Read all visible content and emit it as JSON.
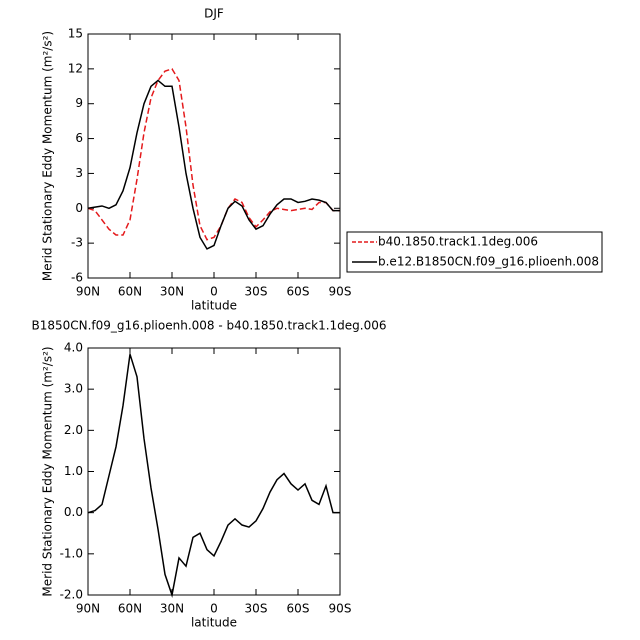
{
  "chart_data": [
    {
      "type": "line",
      "title": "DJF",
      "xlabel": "latitude",
      "ylabel": "Merid Stationary Eddy Momentum (m²/s²)",
      "x": [
        90,
        85,
        80,
        75,
        70,
        65,
        60,
        55,
        50,
        45,
        40,
        35,
        30,
        25,
        20,
        15,
        10,
        5,
        0,
        -5,
        -10,
        -15,
        -20,
        -25,
        -30,
        -35,
        -40,
        -45,
        -50,
        -55,
        -60,
        -65,
        -70,
        -75,
        -80,
        -85,
        -90
      ],
      "series": [
        {
          "name": "b40.1850.track1.1deg.006",
          "color": "#e41a1c",
          "dash": true,
          "values": [
            0,
            -0.2,
            -1,
            -1.8,
            -2.3,
            -2.3,
            -1,
            2.5,
            6.5,
            9.5,
            11,
            11.8,
            12,
            11,
            7,
            2,
            -1.5,
            -2.7,
            -2.5,
            -1.5,
            0,
            0.8,
            0.5,
            -0.8,
            -1.6,
            -1,
            -0.3,
            0,
            -0.1,
            -0.2,
            -0.1,
            0,
            -0.1,
            0.5,
            0.5,
            -0.2,
            -0.2
          ]
        },
        {
          "name": "b.e12.B1850CN.f09_g16.plioenh.008",
          "color": "#000000",
          "dash": false,
          "values": [
            0,
            0.1,
            0.2,
            0,
            0.3,
            1.5,
            3.5,
            6.5,
            9,
            10.5,
            11,
            10.5,
            10.5,
            7,
            3,
            0,
            -2.5,
            -3.5,
            -3.2,
            -1.5,
            0,
            0.6,
            0.2,
            -1,
            -1.8,
            -1.5,
            -0.5,
            0.3,
            0.8,
            0.8,
            0.5,
            0.6,
            0.8,
            0.7,
            0.5,
            -0.2,
            -0.2
          ]
        }
      ],
      "xlim": [
        90,
        -90
      ],
      "xticks": [
        {
          "value": 90,
          "label": "90N"
        },
        {
          "value": 60,
          "label": "60N"
        },
        {
          "value": 30,
          "label": "30N"
        },
        0,
        {
          "value": -30,
          "label": "30S"
        },
        {
          "value": -60,
          "label": "60S"
        },
        {
          "value": -90,
          "label": "90S"
        }
      ],
      "ylim": [
        -6,
        15
      ],
      "yticks": [
        -6,
        -3,
        0,
        3,
        6,
        9,
        12,
        15
      ],
      "legend": "outside-right"
    },
    {
      "type": "line",
      "title": "B1850CN.f09_g16.plioenh.008 - b40.1850.track1.1deg.006",
      "xlabel": "latitude",
      "ylabel": "Merid Stationary Eddy Momentum (m²/s²)",
      "x": [
        90,
        85,
        80,
        75,
        70,
        65,
        60,
        55,
        50,
        45,
        40,
        35,
        30,
        25,
        20,
        15,
        10,
        5,
        0,
        -5,
        -10,
        -15,
        -20,
        -25,
        -30,
        -35,
        -40,
        -45,
        -50,
        -55,
        -60,
        -65,
        -70,
        -75,
        -80,
        -85,
        -90
      ],
      "series": [
        {
          "color": "#000000",
          "values": [
            0,
            0.05,
            0.2,
            0.9,
            1.6,
            2.6,
            3.85,
            3.3,
            1.8,
            0.6,
            -0.4,
            -1.5,
            -2,
            -1.1,
            -1.3,
            -0.6,
            -0.5,
            -0.9,
            -1.05,
            -0.7,
            -0.3,
            -0.15,
            -0.3,
            -0.35,
            -0.2,
            0.1,
            0.5,
            0.8,
            0.95,
            0.7,
            0.55,
            0.7,
            0.3,
            0.2,
            0.65,
            0,
            0
          ]
        }
      ],
      "xlim": [
        90,
        -90
      ],
      "xticks": [
        {
          "value": 90,
          "label": "90N"
        },
        {
          "value": 60,
          "label": "60N"
        },
        {
          "value": 30,
          "label": "30N"
        },
        0,
        {
          "value": -30,
          "label": "30S"
        },
        {
          "value": -60,
          "label": "60S"
        },
        {
          "value": -90,
          "label": "90S"
        }
      ],
      "ylim": [
        -2,
        4
      ],
      "yticks": [
        {
          "value": -2,
          "label": "-2.0"
        },
        {
          "value": -1,
          "label": "-1.0"
        },
        {
          "value": 0,
          "label": "0.0"
        },
        {
          "value": 1,
          "label": "1.0"
        },
        {
          "value": 2,
          "label": "2.0"
        },
        {
          "value": 3,
          "label": "3.0"
        },
        {
          "value": 4,
          "label": "4.0"
        }
      ]
    }
  ]
}
